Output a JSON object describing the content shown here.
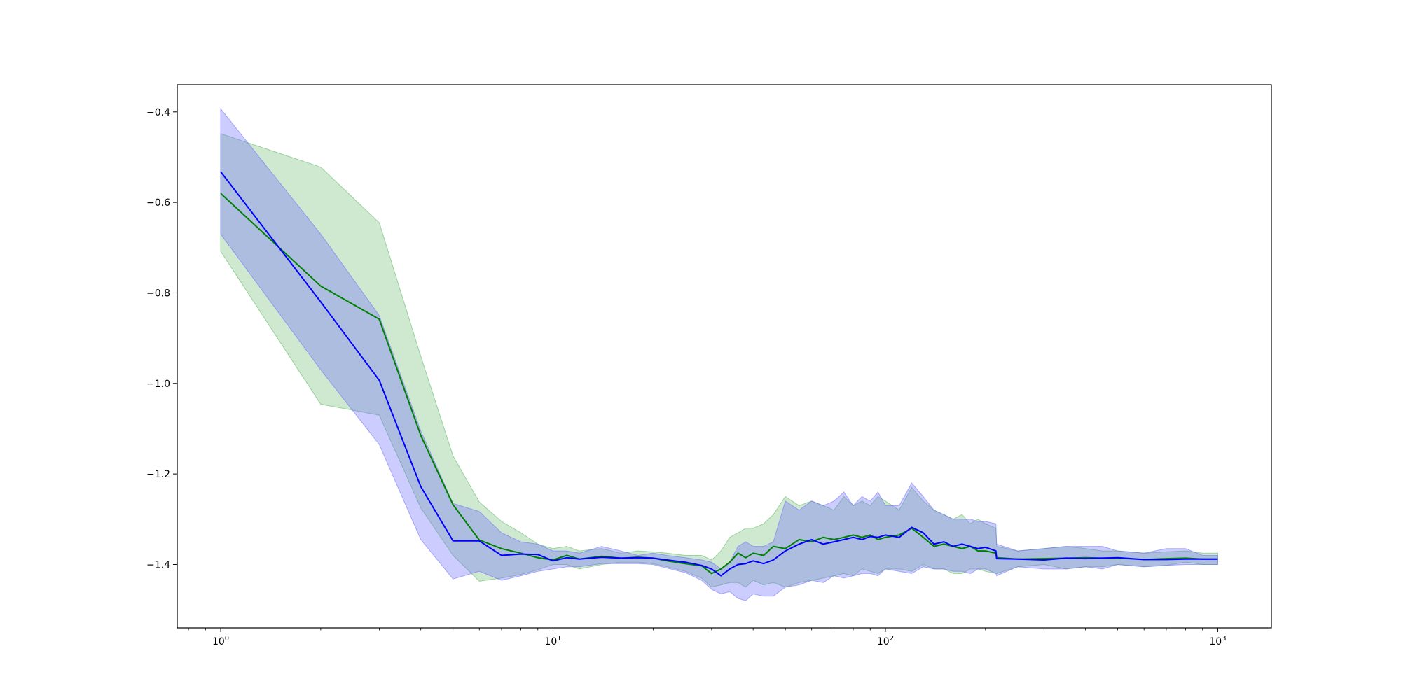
{
  "chart_data": {
    "type": "line",
    "title": "",
    "xlabel": "",
    "ylabel": "",
    "xscale": "log",
    "xlim": [
      0.74,
      1450
    ],
    "ylim": [
      -1.54,
      -0.34
    ],
    "grid": false,
    "legend": "none",
    "y_ticks": [
      {
        "value": -0.4,
        "label": "−0.4"
      },
      {
        "value": -0.6,
        "label": "−0.6"
      },
      {
        "value": -0.8,
        "label": "−0.8"
      },
      {
        "value": -1.0,
        "label": "−1.0"
      },
      {
        "value": -1.2,
        "label": "−1.2"
      },
      {
        "value": -1.4,
        "label": "−1.4"
      }
    ],
    "x_ticks": [
      {
        "value": 1,
        "base": "10",
        "exp": "0"
      },
      {
        "value": 10,
        "base": "10",
        "exp": "1"
      },
      {
        "value": 100,
        "base": "10",
        "exp": "2"
      },
      {
        "value": 1000,
        "base": "10",
        "exp": "3"
      }
    ],
    "series": [
      {
        "color": "#008000",
        "band_color": "#4caf50",
        "band_opacity": 0.27,
        "x": [
          1,
          2,
          3,
          4,
          5,
          6,
          7,
          8,
          9,
          10,
          11,
          12,
          14,
          16,
          18,
          20,
          22,
          25,
          28,
          30,
          32,
          34,
          36,
          38,
          40,
          43,
          46,
          50,
          55,
          60,
          65,
          70,
          75,
          80,
          85,
          90,
          95,
          100,
          110,
          120,
          130,
          140,
          150,
          160,
          170,
          180,
          190,
          200,
          215,
          216,
          250,
          300,
          350,
          400,
          450,
          500,
          600,
          700,
          800,
          900,
          1000
        ],
        "mean": [
          -0.58,
          -0.785,
          -0.858,
          -1.115,
          -1.268,
          -1.346,
          -1.365,
          -1.375,
          -1.385,
          -1.39,
          -1.38,
          -1.388,
          -1.382,
          -1.386,
          -1.384,
          -1.386,
          -1.392,
          -1.398,
          -1.403,
          -1.42,
          -1.41,
          -1.395,
          -1.375,
          -1.385,
          -1.375,
          -1.38,
          -1.36,
          -1.365,
          -1.345,
          -1.35,
          -1.34,
          -1.345,
          -1.34,
          -1.335,
          -1.34,
          -1.335,
          -1.345,
          -1.34,
          -1.335,
          -1.32,
          -1.34,
          -1.36,
          -1.355,
          -1.36,
          -1.365,
          -1.36,
          -1.37,
          -1.37,
          -1.375,
          -1.385,
          -1.388,
          -1.387,
          -1.386,
          -1.385,
          -1.386,
          -1.386,
          -1.389,
          -1.387,
          -1.386,
          -1.388,
          -1.388
        ],
        "lower": [
          -0.708,
          -1.046,
          -1.07,
          -1.275,
          -1.38,
          -1.437,
          -1.43,
          -1.422,
          -1.412,
          -1.4,
          -1.4,
          -1.41,
          -1.4,
          -1.395,
          -1.395,
          -1.398,
          -1.405,
          -1.415,
          -1.43,
          -1.45,
          -1.445,
          -1.44,
          -1.44,
          -1.45,
          -1.435,
          -1.445,
          -1.44,
          -1.45,
          -1.44,
          -1.435,
          -1.43,
          -1.425,
          -1.42,
          -1.425,
          -1.41,
          -1.415,
          -1.42,
          -1.41,
          -1.41,
          -1.415,
          -1.4,
          -1.41,
          -1.41,
          -1.42,
          -1.42,
          -1.41,
          -1.41,
          -1.415,
          -1.42,
          -1.42,
          -1.405,
          -1.4,
          -1.41,
          -1.405,
          -1.405,
          -1.4,
          -1.405,
          -1.402,
          -1.395,
          -1.4,
          -1.4
        ],
        "upper": [
          -0.448,
          -0.522,
          -0.645,
          -0.94,
          -1.16,
          -1.262,
          -1.305,
          -1.33,
          -1.355,
          -1.365,
          -1.36,
          -1.37,
          -1.365,
          -1.375,
          -1.37,
          -1.372,
          -1.375,
          -1.38,
          -1.38,
          -1.39,
          -1.37,
          -1.34,
          -1.33,
          -1.32,
          -1.32,
          -1.31,
          -1.29,
          -1.25,
          -1.27,
          -1.26,
          -1.27,
          -1.28,
          -1.25,
          -1.27,
          -1.26,
          -1.27,
          -1.25,
          -1.26,
          -1.28,
          -1.23,
          -1.26,
          -1.28,
          -1.29,
          -1.3,
          -1.29,
          -1.31,
          -1.3,
          -1.31,
          -1.32,
          -1.36,
          -1.37,
          -1.365,
          -1.36,
          -1.365,
          -1.37,
          -1.37,
          -1.375,
          -1.372,
          -1.37,
          -1.375,
          -1.375
        ]
      },
      {
        "color": "#0000ff",
        "band_color": "#6464ff",
        "band_opacity": 0.33,
        "x": [
          1,
          2,
          3,
          4,
          5,
          6,
          7,
          8,
          9,
          10,
          11,
          12,
          14,
          16,
          18,
          20,
          22,
          25,
          28,
          30,
          32,
          34,
          36,
          38,
          40,
          43,
          46,
          50,
          55,
          60,
          65,
          70,
          75,
          80,
          85,
          90,
          95,
          100,
          110,
          120,
          130,
          140,
          150,
          160,
          170,
          180,
          190,
          200,
          215,
          216,
          250,
          300,
          350,
          400,
          450,
          500,
          600,
          700,
          800,
          900,
          1000
        ],
        "mean": [
          -0.532,
          -0.82,
          -0.993,
          -1.228,
          -1.348,
          -1.348,
          -1.38,
          -1.377,
          -1.378,
          -1.392,
          -1.385,
          -1.388,
          -1.384,
          -1.386,
          -1.385,
          -1.386,
          -1.39,
          -1.395,
          -1.402,
          -1.41,
          -1.425,
          -1.41,
          -1.4,
          -1.398,
          -1.392,
          -1.398,
          -1.39,
          -1.37,
          -1.355,
          -1.345,
          -1.355,
          -1.35,
          -1.345,
          -1.34,
          -1.345,
          -1.338,
          -1.34,
          -1.335,
          -1.34,
          -1.318,
          -1.33,
          -1.355,
          -1.35,
          -1.36,
          -1.355,
          -1.36,
          -1.365,
          -1.362,
          -1.37,
          -1.387,
          -1.388,
          -1.39,
          -1.386,
          -1.387,
          -1.386,
          -1.385,
          -1.389,
          -1.389,
          -1.388,
          -1.388,
          -1.388
        ],
        "lower": [
          -0.67,
          -0.97,
          -1.135,
          -1.345,
          -1.432,
          -1.415,
          -1.435,
          -1.425,
          -1.415,
          -1.41,
          -1.405,
          -1.405,
          -1.398,
          -1.398,
          -1.398,
          -1.4,
          -1.408,
          -1.418,
          -1.435,
          -1.455,
          -1.465,
          -1.46,
          -1.475,
          -1.48,
          -1.465,
          -1.47,
          -1.47,
          -1.45,
          -1.445,
          -1.435,
          -1.44,
          -1.425,
          -1.43,
          -1.425,
          -1.42,
          -1.42,
          -1.425,
          -1.41,
          -1.415,
          -1.42,
          -1.405,
          -1.41,
          -1.41,
          -1.415,
          -1.415,
          -1.42,
          -1.41,
          -1.41,
          -1.42,
          -1.425,
          -1.405,
          -1.41,
          -1.41,
          -1.405,
          -1.41,
          -1.4,
          -1.405,
          -1.402,
          -1.4,
          -1.4,
          -1.4
        ],
        "upper": [
          -0.393,
          -0.67,
          -0.85,
          -1.105,
          -1.265,
          -1.283,
          -1.33,
          -1.35,
          -1.355,
          -1.37,
          -1.37,
          -1.375,
          -1.36,
          -1.37,
          -1.38,
          -1.375,
          -1.38,
          -1.385,
          -1.39,
          -1.395,
          -1.41,
          -1.395,
          -1.36,
          -1.35,
          -1.36,
          -1.36,
          -1.35,
          -1.26,
          -1.28,
          -1.26,
          -1.27,
          -1.26,
          -1.24,
          -1.27,
          -1.25,
          -1.26,
          -1.24,
          -1.27,
          -1.27,
          -1.22,
          -1.25,
          -1.28,
          -1.29,
          -1.3,
          -1.3,
          -1.3,
          -1.305,
          -1.305,
          -1.31,
          -1.355,
          -1.37,
          -1.365,
          -1.36,
          -1.36,
          -1.36,
          -1.37,
          -1.375,
          -1.365,
          -1.365,
          -1.38,
          -1.38
        ]
      }
    ]
  }
}
